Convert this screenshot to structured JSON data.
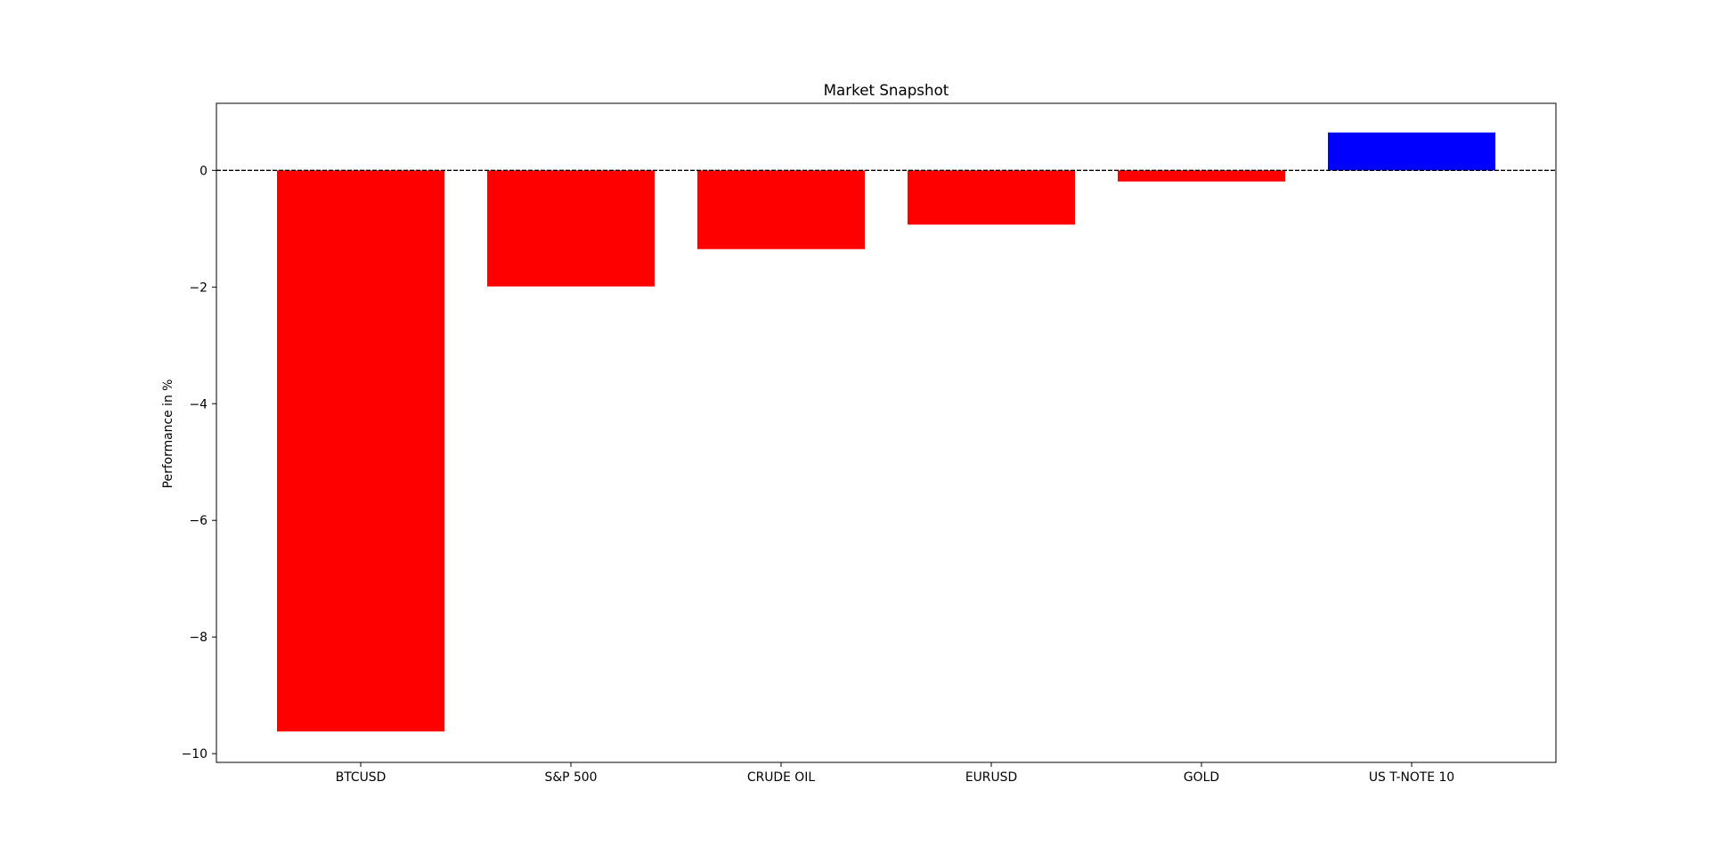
{
  "chart_data": {
    "type": "bar",
    "title": "Market Snapshot",
    "xlabel": "",
    "ylabel": "Performance in %",
    "categories": [
      "BTCUSD",
      "S&P 500",
      "CRUDE OIL",
      "EURUSD",
      "GOLD",
      "US T-NOTE 10"
    ],
    "values": [
      -9.62,
      -1.99,
      -1.35,
      -0.93,
      -0.19,
      0.65
    ],
    "colors": [
      "#ff0000",
      "#ff0000",
      "#ff0000",
      "#ff0000",
      "#ff0000",
      "#0000ff"
    ],
    "ylim": [
      -10.15,
      1.15
    ],
    "yticks": [
      0,
      -2,
      -4,
      -6,
      -8,
      -10
    ],
    "ytick_labels": [
      "0",
      "−2",
      "−4",
      "−6",
      "−8",
      "−10"
    ],
    "zero_line": {
      "value": 0,
      "style": "dashed",
      "color": "#000000"
    },
    "grid": false,
    "legend": "none"
  }
}
